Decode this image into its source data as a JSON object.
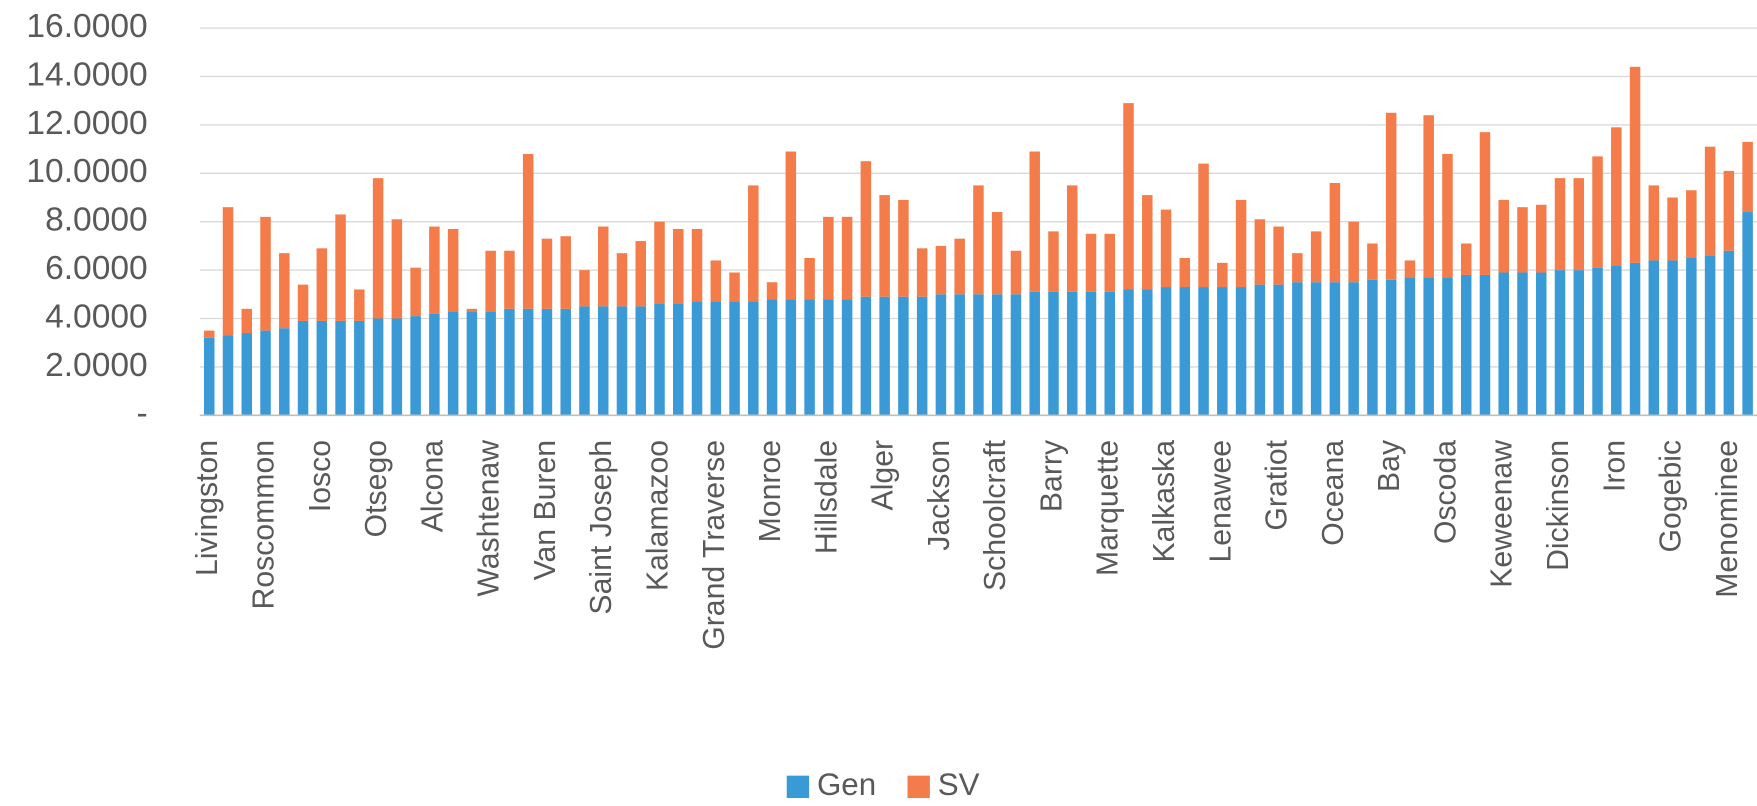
{
  "chart_data": {
    "type": "stacked_bar",
    "categories": [
      "Livingston",
      null,
      null,
      "Roscommon",
      null,
      null,
      "Iosco",
      null,
      null,
      "Otsego",
      null,
      null,
      "Alcona",
      null,
      null,
      "Washtenaw",
      null,
      null,
      "Van Buren",
      null,
      null,
      "Saint Joseph",
      null,
      null,
      "Kalamazoo",
      null,
      null,
      "Grand Traverse",
      null,
      null,
      "Monroe",
      null,
      null,
      "Hillsdale",
      null,
      null,
      "Alger",
      null,
      null,
      "Jackson",
      null,
      null,
      "Schoolcraft",
      null,
      null,
      "Barry",
      null,
      null,
      "Marquette",
      null,
      null,
      "Kalkaska",
      null,
      null,
      "Lenawee",
      null,
      null,
      "Gratiot",
      null,
      null,
      "Oceana",
      null,
      null,
      "Bay",
      null,
      null,
      "Oscoda",
      null,
      null,
      "Keweenaw",
      null,
      null,
      "Dickinson",
      null,
      null,
      "Iron",
      null,
      null,
      "Gogebic",
      null,
      null,
      "Menominee",
      null
    ],
    "series": [
      {
        "name": "Gen",
        "color": "#3a9ad6",
        "values": [
          3.2,
          3.3,
          3.4,
          3.5,
          3.6,
          3.9,
          3.9,
          3.9,
          3.9,
          4.0,
          4.0,
          4.1,
          4.2,
          4.3,
          4.3,
          4.3,
          4.4,
          4.4,
          4.4,
          4.4,
          4.5,
          4.5,
          4.5,
          4.5,
          4.6,
          4.6,
          4.7,
          4.7,
          4.7,
          4.7,
          4.8,
          4.8,
          4.8,
          4.8,
          4.8,
          4.9,
          4.9,
          4.9,
          4.9,
          5.0,
          5.0,
          5.0,
          5.0,
          5.0,
          5.1,
          5.1,
          5.1,
          5.1,
          5.1,
          5.2,
          5.2,
          5.3,
          5.3,
          5.3,
          5.3,
          5.3,
          5.4,
          5.4,
          5.5,
          5.5,
          5.5,
          5.5,
          5.6,
          5.6,
          5.7,
          5.7,
          5.7,
          5.8,
          5.8,
          5.9,
          5.9,
          5.9,
          6.0,
          6.0,
          6.1,
          6.2,
          6.3,
          6.4,
          6.4,
          6.5,
          6.6,
          6.8,
          8.4
        ]
      },
      {
        "name": "SV",
        "color": "#f37c4a",
        "values": [
          0.3,
          5.3,
          1.0,
          4.7,
          3.1,
          1.5,
          3.0,
          4.4,
          1.3,
          5.8,
          4.1,
          2.0,
          3.6,
          3.4,
          0.1,
          2.5,
          2.4,
          6.4,
          2.9,
          3.0,
          1.5,
          3.3,
          2.2,
          2.7,
          3.4,
          3.1,
          3.0,
          1.7,
          1.2,
          4.8,
          0.7,
          6.1,
          1.7,
          3.4,
          3.4,
          5.6,
          4.2,
          4.0,
          2.0,
          2.0,
          2.3,
          4.5,
          3.4,
          1.8,
          5.8,
          2.5,
          4.4,
          2.4,
          2.4,
          7.7,
          3.9,
          3.2,
          1.2,
          5.1,
          1.0,
          3.6,
          2.7,
          2.4,
          1.2,
          2.1,
          4.1,
          2.5,
          1.5,
          6.9,
          0.7,
          6.7,
          5.1,
          1.3,
          5.9,
          3.0,
          2.7,
          2.8,
          3.8,
          3.8,
          4.6,
          5.7,
          8.1,
          3.1,
          2.6,
          2.8,
          4.5,
          3.3,
          2.9
        ]
      }
    ],
    "ylim": [
      0,
      16
    ],
    "yticks": [
      {
        "value": 0,
        "label": "-"
      },
      {
        "value": 2,
        "label": "2.0000"
      },
      {
        "value": 4,
        "label": "4.0000"
      },
      {
        "value": 6,
        "label": "6.0000"
      },
      {
        "value": 8,
        "label": "8.0000"
      },
      {
        "value": 10,
        "label": "10.0000"
      },
      {
        "value": 12,
        "label": "12.0000"
      },
      {
        "value": 14,
        "label": "14.0000"
      },
      {
        "value": 16,
        "label": "16.0000"
      }
    ],
    "grid": true,
    "legend": "bottom"
  }
}
